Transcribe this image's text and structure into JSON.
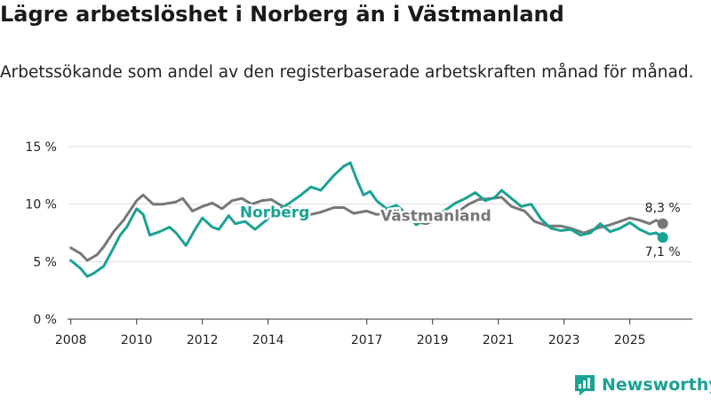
{
  "header": {
    "title": "Lägre arbetslöshet i Norberg än i Västmanland",
    "subtitle": "Arbetssökande som andel av den registerbaserade arbetskraften månad för månad."
  },
  "brand": {
    "name": "Newsworthy"
  },
  "colors": {
    "norberg": "#1aa294",
    "vastmanland": "#777777",
    "grid": "#dddddd",
    "axis": "#333333"
  },
  "chart_data": {
    "type": "line",
    "title": "Lägre arbetslöshet i Norberg än i Västmanland",
    "xlabel": "",
    "ylabel": "",
    "xlim": [
      2007.9,
      2026.9
    ],
    "ylim": [
      0,
      15
    ],
    "grid": true,
    "x_ticks": [
      {
        "value": 2008,
        "label": "2008"
      },
      {
        "value": 2010,
        "label": "2010"
      },
      {
        "value": 2012,
        "label": "2012"
      },
      {
        "value": 2014,
        "label": "2014"
      },
      {
        "value": 2017,
        "label": "2017"
      },
      {
        "value": 2019,
        "label": "2019"
      },
      {
        "value": 2021,
        "label": "2021"
      },
      {
        "value": 2023,
        "label": "2023"
      },
      {
        "value": 2025,
        "label": "2025"
      }
    ],
    "y_ticks": [
      {
        "value": 0,
        "label": "0 %"
      },
      {
        "value": 5,
        "label": "5 %"
      },
      {
        "value": 10,
        "label": "10 %"
      },
      {
        "value": 15,
        "label": "15 %"
      }
    ],
    "series": [
      {
        "name": "Norberg",
        "label": "Norberg",
        "label_at": [
          2014.2,
          9.3
        ],
        "end_label": "7,1 %",
        "points": [
          [
            2008.0,
            5.1
          ],
          [
            2008.3,
            4.4
          ],
          [
            2008.5,
            3.7
          ],
          [
            2008.7,
            4.0
          ],
          [
            2009.0,
            4.6
          ],
          [
            2009.3,
            6.2
          ],
          [
            2009.5,
            7.3
          ],
          [
            2009.7,
            8.0
          ],
          [
            2010.0,
            9.6
          ],
          [
            2010.2,
            9.1
          ],
          [
            2010.4,
            7.3
          ],
          [
            2010.7,
            7.6
          ],
          [
            2011.0,
            8.0
          ],
          [
            2011.2,
            7.5
          ],
          [
            2011.5,
            6.4
          ],
          [
            2011.8,
            7.9
          ],
          [
            2012.0,
            8.8
          ],
          [
            2012.3,
            8.0
          ],
          [
            2012.5,
            7.8
          ],
          [
            2012.8,
            9.0
          ],
          [
            2013.0,
            8.3
          ],
          [
            2013.3,
            8.5
          ],
          [
            2013.6,
            7.8
          ],
          [
            2013.9,
            8.5
          ],
          [
            2014.2,
            9.3
          ],
          [
            2014.6,
            10.0
          ],
          [
            2015.0,
            10.8
          ],
          [
            2015.3,
            11.5
          ],
          [
            2015.6,
            11.2
          ],
          [
            2016.0,
            12.5
          ],
          [
            2016.3,
            13.3
          ],
          [
            2016.5,
            13.6
          ],
          [
            2016.7,
            12.1
          ],
          [
            2016.9,
            10.8
          ],
          [
            2017.1,
            11.1
          ],
          [
            2017.3,
            10.3
          ],
          [
            2017.6,
            9.6
          ],
          [
            2017.9,
            9.9
          ],
          [
            2018.2,
            9.2
          ],
          [
            2018.5,
            8.2
          ],
          [
            2018.8,
            8.7
          ],
          [
            2019.1,
            8.9
          ],
          [
            2019.4,
            9.5
          ],
          [
            2019.7,
            10.1
          ],
          [
            2020.0,
            10.5
          ],
          [
            2020.3,
            11.0
          ],
          [
            2020.6,
            10.3
          ],
          [
            2020.9,
            10.6
          ],
          [
            2021.1,
            11.2
          ],
          [
            2021.4,
            10.5
          ],
          [
            2021.7,
            9.8
          ],
          [
            2022.0,
            10.0
          ],
          [
            2022.3,
            8.7
          ],
          [
            2022.6,
            7.9
          ],
          [
            2022.9,
            7.7
          ],
          [
            2023.2,
            7.8
          ],
          [
            2023.5,
            7.3
          ],
          [
            2023.8,
            7.5
          ],
          [
            2024.1,
            8.3
          ],
          [
            2024.4,
            7.6
          ],
          [
            2024.7,
            7.9
          ],
          [
            2025.0,
            8.4
          ],
          [
            2025.3,
            7.8
          ],
          [
            2025.6,
            7.4
          ],
          [
            2025.8,
            7.5
          ],
          [
            2026.0,
            7.1
          ]
        ]
      },
      {
        "name": "Västmanland",
        "label": "Västmanland",
        "label_at": [
          2019.1,
          9.0
        ],
        "end_label": "8,3 %",
        "points": [
          [
            2008.0,
            6.2
          ],
          [
            2008.3,
            5.7
          ],
          [
            2008.5,
            5.1
          ],
          [
            2008.8,
            5.6
          ],
          [
            2009.0,
            6.3
          ],
          [
            2009.3,
            7.6
          ],
          [
            2009.6,
            8.6
          ],
          [
            2010.0,
            10.3
          ],
          [
            2010.2,
            10.8
          ],
          [
            2010.5,
            10.0
          ],
          [
            2010.8,
            10.0
          ],
          [
            2011.2,
            10.2
          ],
          [
            2011.4,
            10.5
          ],
          [
            2011.7,
            9.4
          ],
          [
            2012.0,
            9.8
          ],
          [
            2012.3,
            10.1
          ],
          [
            2012.6,
            9.6
          ],
          [
            2012.9,
            10.3
          ],
          [
            2013.2,
            10.5
          ],
          [
            2013.5,
            10.0
          ],
          [
            2013.8,
            10.3
          ],
          [
            2014.1,
            10.4
          ],
          [
            2014.5,
            9.7
          ],
          [
            2014.9,
            9.6
          ],
          [
            2015.3,
            9.1
          ],
          [
            2015.6,
            9.3
          ],
          [
            2016.0,
            9.7
          ],
          [
            2016.3,
            9.7
          ],
          [
            2016.6,
            9.2
          ],
          [
            2017.0,
            9.4
          ],
          [
            2017.3,
            9.1
          ],
          [
            2017.7,
            9.3
          ],
          [
            2018.0,
            9.0
          ],
          [
            2018.4,
            8.5
          ],
          [
            2018.8,
            8.3
          ],
          [
            2019.1,
            8.6
          ],
          [
            2019.4,
            8.8
          ],
          [
            2019.8,
            9.4
          ],
          [
            2020.1,
            10.0
          ],
          [
            2020.4,
            10.4
          ],
          [
            2020.8,
            10.5
          ],
          [
            2021.1,
            10.6
          ],
          [
            2021.4,
            9.8
          ],
          [
            2021.8,
            9.4
          ],
          [
            2022.1,
            8.5
          ],
          [
            2022.5,
            8.1
          ],
          [
            2022.9,
            8.1
          ],
          [
            2023.2,
            7.9
          ],
          [
            2023.6,
            7.5
          ],
          [
            2024.0,
            7.9
          ],
          [
            2024.4,
            8.2
          ],
          [
            2024.8,
            8.6
          ],
          [
            2025.0,
            8.8
          ],
          [
            2025.3,
            8.6
          ],
          [
            2025.6,
            8.3
          ],
          [
            2025.8,
            8.6
          ],
          [
            2026.0,
            8.3
          ]
        ]
      }
    ]
  }
}
